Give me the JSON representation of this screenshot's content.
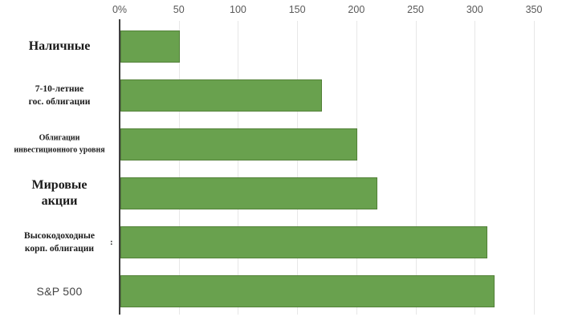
{
  "chart_data": {
    "type": "bar",
    "orientation": "horizontal",
    "title": "",
    "categories": [
      {
        "lines": [
          "Наличные"
        ],
        "style": "serif-lg"
      },
      {
        "lines": [
          "7-10-летние",
          "гос. облигации"
        ],
        "style": "serif-md"
      },
      {
        "lines": [
          "Облигации",
          "инвестиционного уровня"
        ],
        "style": "serif-xs"
      },
      {
        "lines": [
          "Мировые",
          "акции"
        ],
        "style": "serif-lg"
      },
      {
        "lines": [
          "Высокодоходные",
          "корп. облигации"
        ],
        "style": "serif-md"
      },
      {
        "lines": [
          "S&P 500"
        ],
        "style": "sans"
      }
    ],
    "values": [
      50,
      170,
      200,
      217,
      310,
      316
    ],
    "x_axis": {
      "position": "top",
      "min": 0,
      "max": 350,
      "tick_step": 50,
      "tick_values": [
        0,
        50,
        100,
        150,
        200,
        250,
        300,
        350
      ],
      "tick_labels": [
        "0%",
        "50",
        "100",
        "150",
        "200",
        "250",
        "300",
        "350"
      ]
    },
    "grid": true,
    "legend": false,
    "ylabel": "",
    "xlabel": "",
    "colors": {
      "bar_fill": "#69a14e",
      "bar_border": "#538139",
      "gridline": "#e7e7e7",
      "axis_line": "#3f3f3f",
      "tick_label": "#595959",
      "category_label": "#1a1a1a",
      "sans_label": "#444444",
      "background": "#ffffff"
    }
  },
  "artifacts": {
    "stray_glyph": ":"
  }
}
